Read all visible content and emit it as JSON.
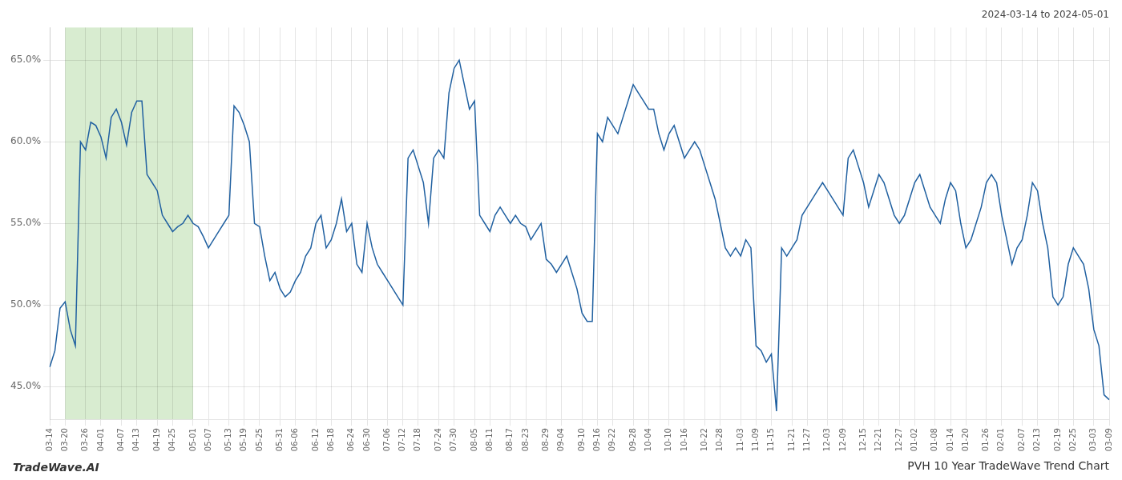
{
  "chart_data": {
    "type": "line",
    "title": "PVH 10 Year TradeWave Trend Chart",
    "subtitle": "2024-03-14 to 2024-05-01",
    "annotations": [
      "TradeWave.AI"
    ],
    "color": "#2060a0",
    "grid": true,
    "highlight": {
      "from": "03-20",
      "to": "05-01",
      "color": "#d8ecd0"
    },
    "ylim": [
      43.0,
      67.0
    ],
    "yticks": [
      {
        "value": 45.0,
        "label": "45.0%"
      },
      {
        "value": 50.0,
        "label": "50.0%"
      },
      {
        "value": 55.0,
        "label": "55.0%"
      },
      {
        "value": 60.0,
        "label": "60.0%"
      },
      {
        "value": 65.0,
        "label": "65.0%"
      }
    ],
    "categories": [
      "03-14",
      null,
      null,
      "03-20",
      null,
      null,
      null,
      "03-26",
      null,
      null,
      "04-01",
      null,
      null,
      null,
      "04-07",
      null,
      null,
      "04-13",
      null,
      null,
      null,
      "04-19",
      null,
      null,
      "04-25",
      null,
      null,
      null,
      "05-01",
      null,
      null,
      "05-07",
      null,
      null,
      null,
      "05-13",
      null,
      null,
      "05-19",
      null,
      null,
      "05-25",
      null,
      null,
      null,
      "05-31",
      null,
      null,
      "06-06",
      null,
      null,
      null,
      "06-12",
      null,
      null,
      "06-18",
      null,
      null,
      null,
      "06-24",
      null,
      null,
      "06-30",
      null,
      null,
      null,
      "07-06",
      null,
      null,
      "07-12",
      null,
      null,
      "07-18",
      null,
      null,
      null,
      "07-24",
      null,
      null,
      "07-30",
      null,
      null,
      null,
      "08-05",
      null,
      null,
      "08-11",
      null,
      null,
      null,
      "08-17",
      null,
      null,
      "08-23",
      null,
      null,
      null,
      "08-29",
      null,
      null,
      "09-04",
      null,
      null,
      null,
      "09-10",
      null,
      null,
      "09-16",
      null,
      null,
      "09-22",
      null,
      null,
      null,
      "09-28",
      null,
      null,
      "10-04",
      null,
      null,
      null,
      "10-10",
      null,
      null,
      "10-16",
      null,
      null,
      null,
      "10-22",
      null,
      null,
      "10-28",
      null,
      null,
      null,
      "11-03",
      null,
      null,
      "11-09",
      null,
      null,
      "11-15",
      null,
      null,
      null,
      "11-21",
      null,
      null,
      "11-27",
      null,
      null,
      null,
      "12-03",
      null,
      null,
      "12-09",
      null,
      null,
      null,
      "12-15",
      null,
      null,
      "12-21",
      null,
      null,
      null,
      "12-27",
      null,
      null,
      "01-02",
      null,
      null,
      null,
      "01-08",
      null,
      null,
      "01-14",
      null,
      null,
      "01-20",
      null,
      null,
      null,
      "01-26",
      null,
      null,
      "02-01",
      null,
      null,
      null,
      "02-07",
      null,
      null,
      "02-13",
      null,
      null,
      null,
      "02-19",
      null,
      null,
      "02-25",
      null,
      null,
      null,
      "03-03",
      null,
      null,
      "03-09"
    ],
    "values": [
      46.2,
      47.2,
      49.8,
      50.2,
      48.5,
      47.5,
      60.0,
      59.5,
      61.2,
      61.0,
      60.3,
      59.0,
      61.5,
      62.0,
      61.2,
      59.8,
      61.8,
      62.5,
      62.5,
      58.0,
      57.5,
      57.0,
      55.5,
      55.0,
      54.5,
      54.8,
      55.0,
      55.5,
      55.0,
      54.8,
      54.2,
      53.5,
      54.0,
      54.5,
      55.0,
      55.5,
      62.2,
      61.8,
      61.0,
      60.0,
      55.0,
      54.8,
      53.0,
      51.5,
      52.0,
      51.0,
      50.5,
      50.8,
      51.5,
      52.0,
      53.0,
      53.5,
      55.0,
      55.5,
      53.5,
      54.0,
      55.0,
      56.5,
      54.5,
      55.0,
      52.5,
      52.0,
      55.0,
      53.5,
      52.5,
      52.0,
      51.5,
      51.0,
      50.5,
      50.0,
      59.0,
      59.5,
      58.5,
      57.5,
      55.0,
      59.0,
      59.5,
      59.0,
      63.0,
      64.5,
      65.0,
      63.5,
      62.0,
      62.5,
      55.5,
      55.0,
      54.5,
      55.5,
      56.0,
      55.5,
      55.0,
      55.5,
      55.0,
      54.8,
      54.0,
      54.5,
      55.0,
      52.8,
      52.5,
      52.0,
      52.5,
      53.0,
      52.0,
      51.0,
      49.5,
      49.0,
      49.0,
      60.5,
      60.0,
      61.5,
      61.0,
      60.5,
      61.5,
      62.5,
      63.5,
      63.0,
      62.5,
      62.0,
      62.0,
      60.5,
      59.5,
      60.5,
      61.0,
      60.0,
      59.0,
      59.5,
      60.0,
      59.5,
      58.5,
      57.5,
      56.5,
      55.0,
      53.5,
      53.0,
      53.5,
      53.0,
      54.0,
      53.5,
      47.5,
      47.2,
      46.5,
      47.0,
      43.5,
      53.5,
      53.0,
      53.5,
      54.0,
      55.5,
      56.0,
      56.5,
      57.0,
      57.5,
      57.0,
      56.5,
      56.0,
      55.5,
      59.0,
      59.5,
      58.5,
      57.5,
      56.0,
      57.0,
      58.0,
      57.5,
      56.5,
      55.5,
      55.0,
      55.5,
      56.5,
      57.5,
      58.0,
      57.0,
      56.0,
      55.5,
      55.0,
      56.5,
      57.5,
      57.0,
      55.0,
      53.5,
      54.0,
      55.0,
      56.0,
      57.5,
      58.0,
      57.5,
      55.5,
      54.0,
      52.5,
      53.5,
      54.0,
      55.5,
      57.5,
      57.0,
      55.0,
      53.5,
      50.5,
      50.0,
      50.5,
      52.5,
      53.5,
      53.0,
      52.5,
      51.0,
      48.5,
      47.5,
      44.5,
      44.2
    ]
  }
}
